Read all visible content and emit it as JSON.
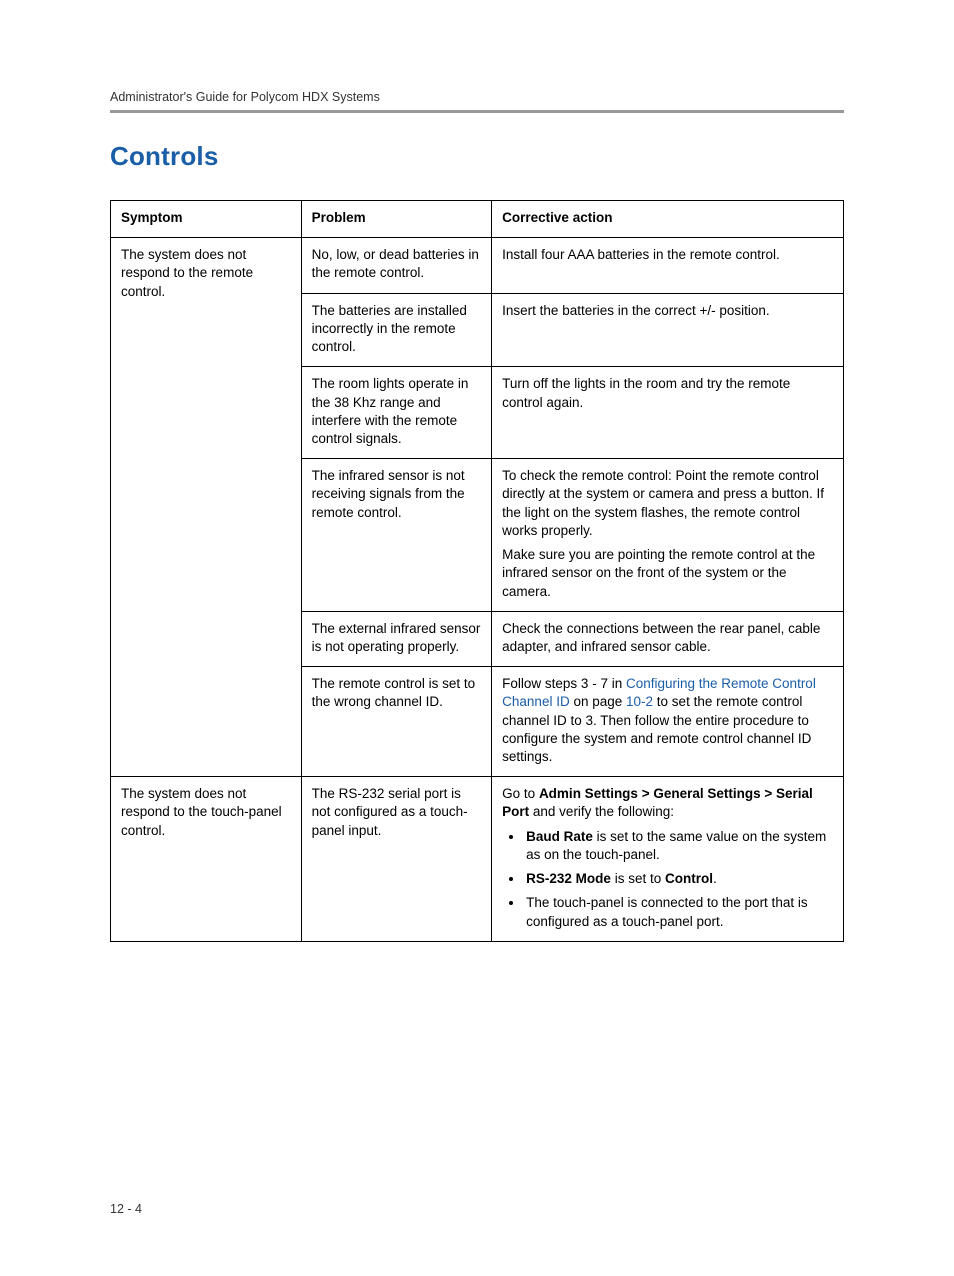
{
  "header": {
    "running": "Administrator's Guide for Polycom HDX Systems"
  },
  "section": {
    "title": "Controls"
  },
  "table": {
    "columns": {
      "symptom": "Symptom",
      "problem": "Problem",
      "action": "Corrective action"
    },
    "rows": {
      "r1_symptom": "The system does not respond to the remote control.",
      "r1_problem": "No, low, or dead batteries in the remote control.",
      "r1_action": "Install four AAA batteries in the remote control.",
      "r2_problem": "The batteries are installed incorrectly in the remote control.",
      "r2_action": "Insert the batteries in the correct +/- position.",
      "r3_problem": "The room lights operate in the 38 Khz range and interfere with the remote control signals.",
      "r3_action": "Turn off the lights in the room and try the remote control again.",
      "r4_problem": "The infrared sensor is not receiving signals from the remote control.",
      "r4_action_p1": "To check the remote control: Point the remote control directly at the system or camera and press a button. If the light on the system flashes, the remote control works properly.",
      "r4_action_p2": "Make sure you are pointing the remote control at the infrared sensor on the front of the system or the camera.",
      "r5_problem": "The external infrared sensor is not operating properly.",
      "r5_action": "Check the connections between the rear panel, cable adapter, and infrared sensor cable.",
      "r6_problem": "The remote control is set to the wrong channel ID.",
      "r6_action_pre": "Follow steps 3 - 7 in ",
      "r6_action_link1": "Configuring the Remote Control Channel ID",
      "r6_action_mid": " on page ",
      "r6_action_link2": "10-2",
      "r6_action_post": " to set the remote control channel ID to 3. Then follow the entire procedure to configure the system and remote control channel ID settings.",
      "r7_symptom": "The system does not respond to the touch-panel control.",
      "r7_problem": "The RS-232 serial port is not configured as a touch-panel input.",
      "r7_action_pre": "Go to ",
      "r7_action_bold": "Admin Settings > General Settings > Serial Port",
      "r7_action_post": " and verify the following:",
      "r7_b1_bold": "Baud Rate",
      "r7_b1_rest": " is set to the same value on the system as on the touch-panel.",
      "r7_b2_bold1": "RS-232 Mode",
      "r7_b2_mid": " is set to ",
      "r7_b2_bold2": "Control",
      "r7_b2_end": ".",
      "r7_b3": "The touch-panel is connected to the port that is configured as a touch-panel port."
    }
  },
  "footer": {
    "pagenum": "12 - 4"
  }
}
